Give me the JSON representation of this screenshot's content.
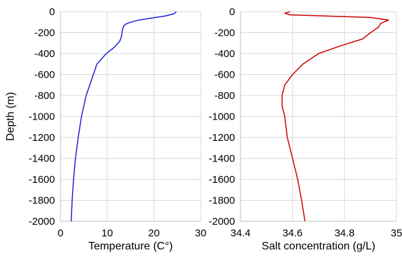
{
  "chart_data": [
    {
      "type": "line",
      "title": "",
      "xlabel": "Temperature (C°)",
      "ylabel": "Depth (m)",
      "xlim": [
        0,
        30
      ],
      "ylim": [
        -2000,
        0
      ],
      "xticks": [
        "0",
        "10",
        "20",
        "30"
      ],
      "yticks": [
        "0",
        "-200",
        "-400",
        "-600",
        "-800",
        "-1000",
        "-1200",
        "-1400",
        "-1600",
        "-1800",
        "-2000"
      ],
      "grid": true,
      "color": "#1f1fd6",
      "series": [
        {
          "x": [
            24.8,
            24.3,
            22.5,
            19.5,
            16.8,
            15.0,
            13.9,
            13.5,
            13.2,
            13.1,
            12.7,
            11.5,
            9.8,
            7.8,
            5.5,
            4.5,
            3.8,
            3.2,
            2.8,
            2.5,
            2.3
          ],
          "y": [
            0,
            -20,
            -40,
            -60,
            -80,
            -100,
            -120,
            -140,
            -180,
            -230,
            -280,
            -340,
            -400,
            -500,
            -800,
            -1000,
            -1200,
            -1400,
            -1600,
            -1800,
            -2000
          ]
        }
      ]
    },
    {
      "type": "line",
      "title": "",
      "xlabel": "Salt concentration (g/L)",
      "ylabel": "",
      "xlim": [
        34.4,
        35
      ],
      "ylim": [
        -2000,
        0
      ],
      "xticks": [
        "34.4",
        "34.6",
        "34.8",
        "35"
      ],
      "yticks": [
        "0",
        "-200",
        "-400",
        "-600",
        "-800",
        "-1000",
        "-1200",
        "-1400",
        "-1600",
        "-1800",
        "-2000"
      ],
      "grid": true,
      "color": "#cc0000",
      "series": [
        {
          "x": [
            34.59,
            34.57,
            34.59,
            34.9,
            34.97,
            34.94,
            34.93,
            34.9,
            34.87,
            34.78,
            34.7,
            34.64,
            34.6,
            34.57,
            34.56,
            34.56,
            34.57,
            34.58,
            34.6,
            34.62,
            34.635,
            34.648
          ],
          "y": [
            0,
            -15,
            -30,
            -55,
            -80,
            -110,
            -150,
            -200,
            -260,
            -330,
            -400,
            -500,
            -600,
            -700,
            -800,
            -900,
            -1000,
            -1200,
            -1400,
            -1600,
            -1800,
            -2000
          ]
        }
      ]
    }
  ]
}
